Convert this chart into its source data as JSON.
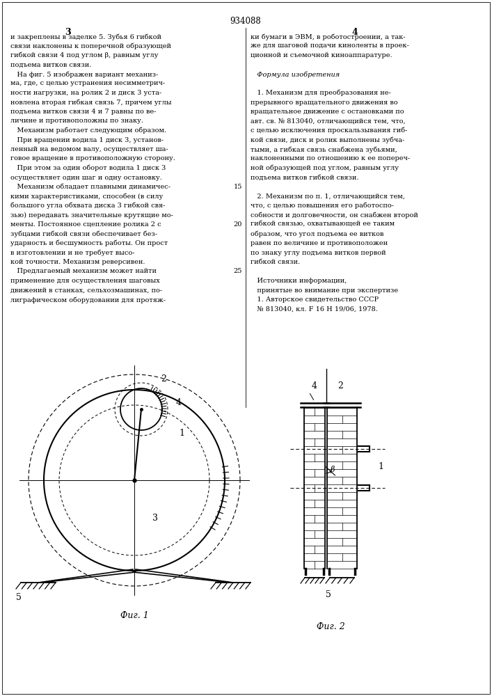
{
  "patent_number": "934088",
  "col_left_num": "3",
  "col_right_num": "4",
  "fig1_label": "Фиг. 1",
  "fig2_label": "Фиг. 2",
  "text_left": [
    "и закреплены в заделке 5. Зубья 6 гибкой",
    "связи наклонены к поперечной образующей",
    "гибкой связи 4 под углом β, равным углу",
    "подъема витков связи.",
    "   На фиг. 5 изображен вариант механиз-",
    "ма, где, с целью устранения несимметрич-",
    "ности нагрузки, на ролик 2 и диск 3 уста-",
    "новлена вторая гибкая связь 7, причем углы",
    "подъема витков связи 4 и 7 равны по ве-",
    "личине и противоположны по знаку.",
    "   Механизм работает следующим образом.",
    "   При вращении водила 1 диск 3, установ-",
    "ленный на ведомом валу, осуществляет ша-",
    "говое вращение в противоположную сторону.",
    "   При этом за один оборот водила 1 диск 3",
    "осуществляет один шаг и одну остановку.",
    "   Механизм обладает плавными динамичес-",
    "кими характеристиками, способен (в силу",
    "большого угла обхвата диска 3 гибкой свя-",
    "зью) передавать значительные крутящие мо-",
    "менты. Постоянное сцепление ролика 2 с",
    "зубцами гибкой связи обеспечивает без-",
    "ударность и бесшумность работы. Он прост",
    "в изготовлении и не требует высо-",
    "кой точности. Механизм реверсивен.",
    "   Предлагаемый механизм может найти",
    "применение для осуществления шаговых",
    "движений в станках, сельхозмашинах, по-",
    "лиграфическом оборудовании для протяж-"
  ],
  "line_nums_left": [
    [
      16,
      "15"
    ],
    [
      20,
      "20"
    ],
    [
      25,
      "25"
    ]
  ],
  "text_right": [
    "ки бумаги в ЭВМ, в роботостроении, а так-",
    "же для шаговой подачи киноленты в проек-",
    "ционной и съемочной киноаппаратуре.",
    "",
    "   Формула изобретения",
    "",
    "   1. Механизм для преобразования не-",
    "прерывного вращательного движения во",
    "вращательное движение с остановками по",
    "авт. св. № 813040, отличающийся тем, что,",
    "с целью исключения проскальзывания гиб-",
    "кой связи, диск и ролик выполнены зубча-",
    "тыми, а гибкая связь снабжена зубьями,",
    "наклоненными по отношению к ее попереч-",
    "ной образующей под углом, равным углу",
    "подъема витков гибкой связи.",
    "",
    "   2. Механизм по п. 1, отличающийся тем,",
    "что, с целью повышения его работоспо-",
    "собности и долговечности, он снабжен второй",
    "гибкой связью, охватывающей ее таким",
    "образом, что угол подъема ее витков",
    "равен по величине и противоположен",
    "по знаку углу подъема витков первой",
    "гибкой связи.",
    "",
    "   Источники информации,",
    "   принятые во внимание при экспертизе",
    "   1. Авторское свидетельство СССР",
    "   № 813040, кл. F 16 H 19/06, 1978."
  ],
  "bg_color": "#ffffff",
  "text_color": "#000000"
}
